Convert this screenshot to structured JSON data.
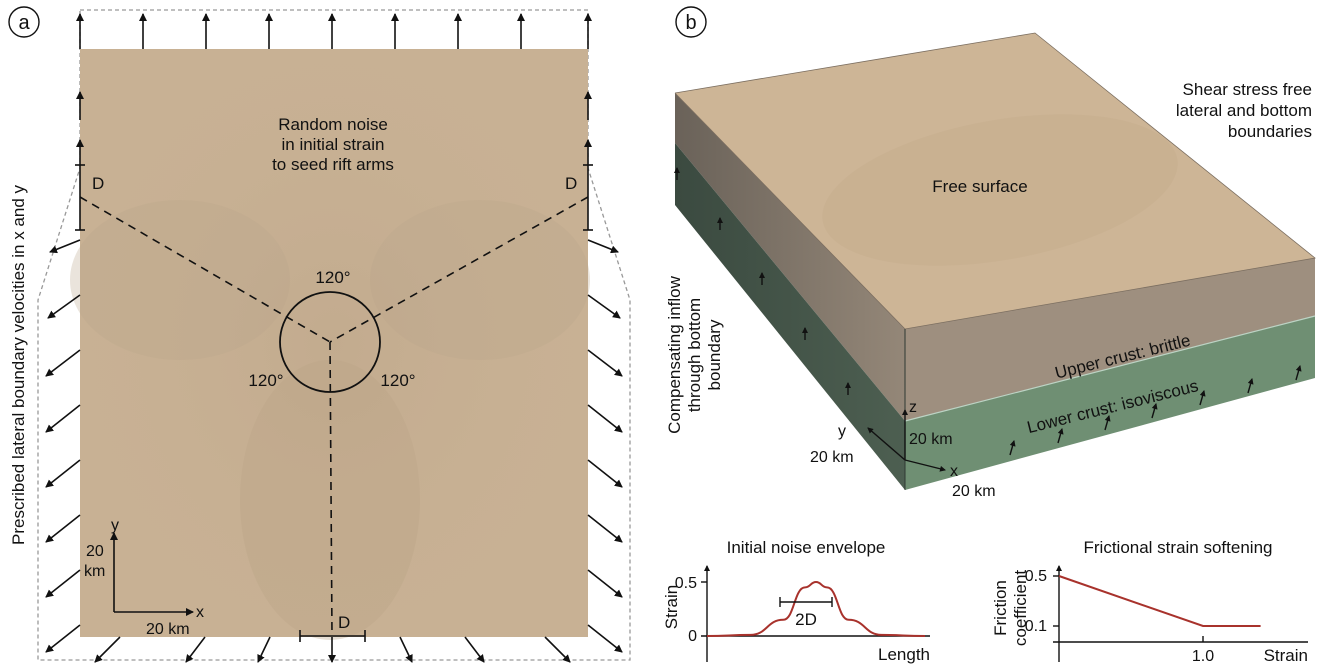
{
  "panel_a": {
    "label": "a",
    "vertical_label": "Prescribed lateral boundary velocities in x and y",
    "noise_text": [
      "Random noise",
      "in initial strain",
      "to seed rift arms"
    ],
    "angle": "120°",
    "d": "D",
    "scale": {
      "y": "y",
      "y_len": "20",
      "y_unit": "km",
      "x": "x",
      "x_len": "20 km"
    }
  },
  "panel_b": {
    "label": "b",
    "shear_text": [
      "Shear stress free",
      "lateral and bottom",
      "boundaries"
    ],
    "free_surface": "Free surface",
    "upper_crust": "Upper crust: brittle",
    "lower_crust": "Lower crust: isoviscous",
    "inflow_text": [
      "Compensating inflow",
      "through bottom",
      "boundary"
    ],
    "axes": {
      "z": "z",
      "z_len": "20 km",
      "y": "y",
      "y_len": "20 km",
      "x": "x",
      "x_len": "20 km"
    }
  },
  "colors": {
    "sand": "#c8b194",
    "sand_side": "#8f8274",
    "green": "#6f8f73",
    "curve": "#a8322c"
  },
  "chart_data": [
    {
      "type": "line",
      "title": "Initial noise envelope",
      "xlabel": "Length",
      "ylabel": "Strain",
      "yticks": [
        "0",
        "0.5"
      ],
      "annotation": "2D",
      "series": [
        {
          "x": [
            0,
            0.2,
            0.35,
            0.45,
            0.5,
            0.55,
            0.65,
            0.8,
            1.0
          ],
          "values": [
            0,
            0.01,
            0.15,
            0.45,
            0.5,
            0.45,
            0.15,
            0.01,
            0
          ]
        }
      ],
      "ylim": [
        0,
        0.6
      ]
    },
    {
      "type": "line",
      "title": "Frictional strain softening",
      "xlabel": "Strain",
      "ylabel": "Friction coefficient",
      "ylabel_lines": [
        "Friction",
        "coefficient"
      ],
      "yticks": [
        "0.1",
        "0.5"
      ],
      "xticks": [
        "1.0"
      ],
      "series": [
        {
          "x": [
            0,
            1.0,
            1.4
          ],
          "values": [
            0.5,
            0.1,
            0.1
          ]
        }
      ],
      "ylim": [
        0,
        0.6
      ]
    }
  ]
}
